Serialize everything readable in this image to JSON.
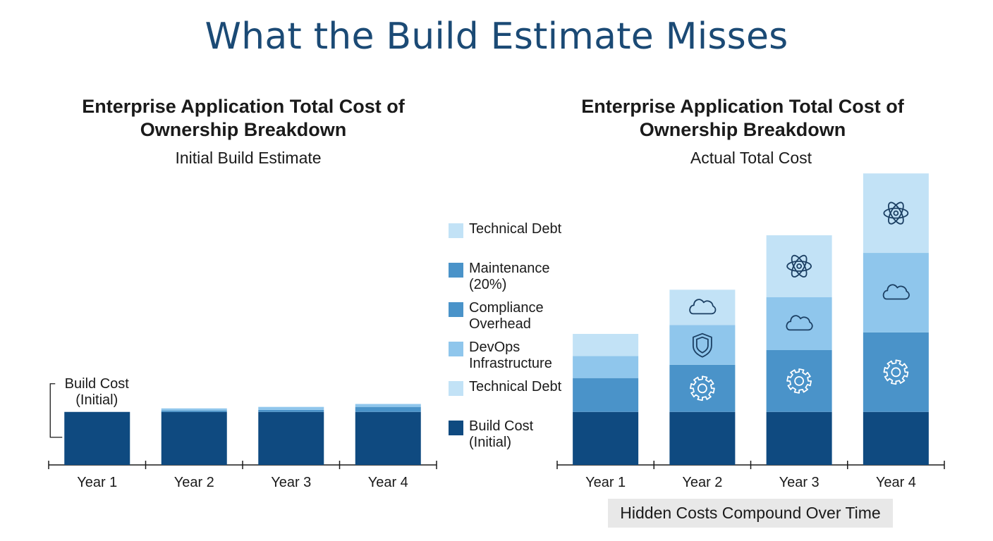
{
  "title": "What the Build Estimate Misses",
  "caption": "Hidden Costs Compound Over Time",
  "legend": [
    {
      "label": "Technical Debt",
      "color": "#c2e2f6"
    },
    {
      "label": "Maintenance (20%)",
      "color": "#4a93c9"
    },
    {
      "label": "Compliance Overhead",
      "color": "#4a93c9"
    },
    {
      "label": "DevOps Infrastructure",
      "color": "#8fc6ec"
    },
    {
      "label": "Technical Debt",
      "color": "#c2e2f6"
    },
    {
      "label": "Build Cost (Initial)",
      "color": "#0f4a80"
    }
  ],
  "chart_data": [
    {
      "type": "bar",
      "title": "Enterprise Application Total Cost of Ownership Breakdown",
      "subtitle": "Initial Build Estimate",
      "categories": [
        "Year 1",
        "Year 2",
        "Year 3",
        "Year 4"
      ],
      "annotation": "Build Cost (Initial)",
      "ylim": [
        0,
        100
      ],
      "series": [
        {
          "name": "Build Cost (Initial)",
          "color": "#0f4a80",
          "values": [
            18,
            18,
            18,
            18
          ]
        },
        {
          "name": "Maintenance (20%)",
          "color": "#4a93c9",
          "values": [
            0,
            0.5,
            0.7,
            1.7
          ]
        },
        {
          "name": "DevOps Infrastructure",
          "color": "#8fc6ec",
          "values": [
            0,
            0.7,
            1.0,
            1.0
          ]
        },
        {
          "name": "Technical Debt",
          "color": "#c2e2f6",
          "values": [
            0,
            0,
            0,
            0
          ]
        }
      ]
    },
    {
      "type": "bar",
      "title": "Enterprise Application Total Cost of Ownership Breakdown",
      "subtitle": "Actual Total Cost",
      "categories": [
        "Year 1",
        "Year 2",
        "Year 3",
        "Year 4"
      ],
      "ylim": [
        0,
        100
      ],
      "series": [
        {
          "name": "Build Cost (Initial)",
          "color": "#0f4a80",
          "values": [
            18,
            18,
            18,
            18
          ],
          "icons": [
            "",
            "",
            "",
            ""
          ]
        },
        {
          "name": "Maintenance (20%)",
          "color": "#4a93c9",
          "values": [
            11.5,
            16,
            21,
            27
          ],
          "icons": [
            "",
            "gear-icon",
            "gear-icon",
            "gear-icon"
          ]
        },
        {
          "name": "DevOps Infrastructure",
          "color": "#8fc6ec",
          "values": [
            7.5,
            13.5,
            18,
            27
          ],
          "icons": [
            "",
            "shield-icon",
            "cloud-icon",
            "cloud-icon"
          ]
        },
        {
          "name": "Technical Debt",
          "color": "#c2e2f6",
          "values": [
            7.5,
            12,
            21,
            27
          ],
          "icons": [
            "",
            "cloud-icon",
            "atom-icon",
            "atom-icon"
          ]
        }
      ]
    }
  ]
}
